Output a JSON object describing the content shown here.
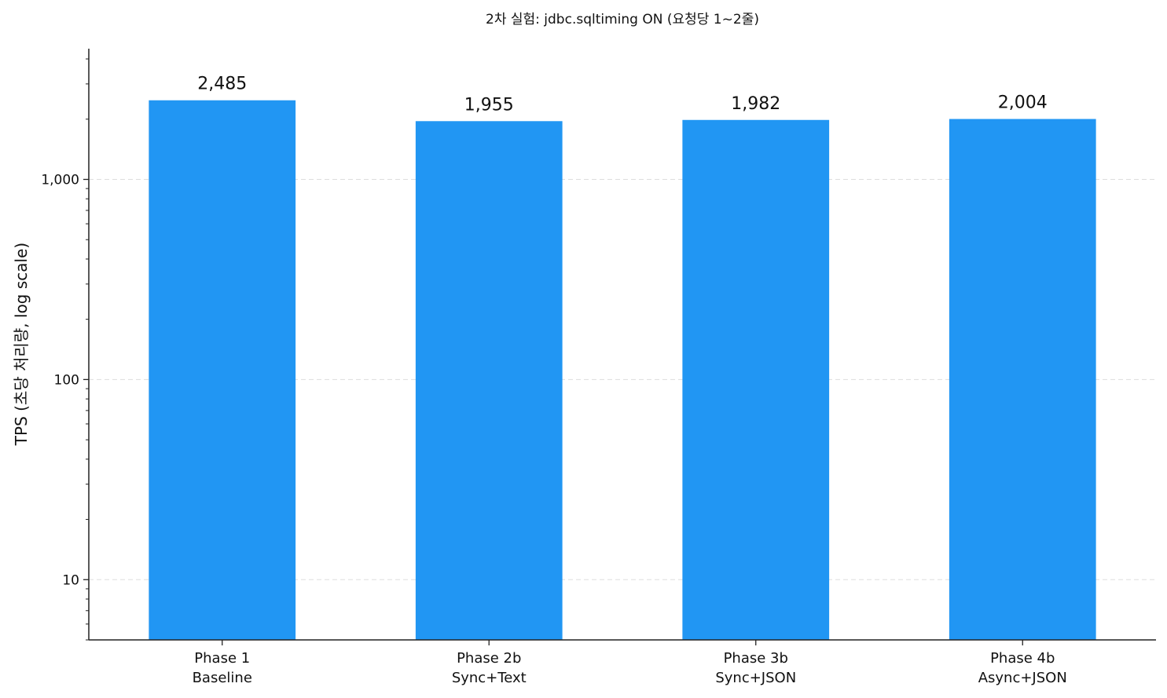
{
  "chart_data": {
    "type": "bar",
    "title": "2차 실험: jdbc.sqltiming ON (요청당 1~2줄)",
    "ylabel": "TPS (초당 처리량, log scale)",
    "xlabel": "",
    "y_scale": "log",
    "ylim": [
      5,
      4500
    ],
    "grid": "y-major-dashed",
    "y_ticks": [
      {
        "value": 10,
        "label": "10"
      },
      {
        "value": 100,
        "label": "100"
      },
      {
        "value": 1000,
        "label": "1,000"
      }
    ],
    "categories": [
      {
        "line1": "Phase 1",
        "line2": "Baseline"
      },
      {
        "line1": "Phase 2b",
        "line2": "Sync+Text"
      },
      {
        "line1": "Phase 3b",
        "line2": "Sync+JSON"
      },
      {
        "line1": "Phase 4b",
        "line2": "Async+JSON"
      }
    ],
    "values": [
      2485,
      1955,
      1982,
      2004
    ],
    "data_labels": [
      "2,485",
      "1,955",
      "1,982",
      "2,004"
    ],
    "bar_color": "#2196F3"
  }
}
